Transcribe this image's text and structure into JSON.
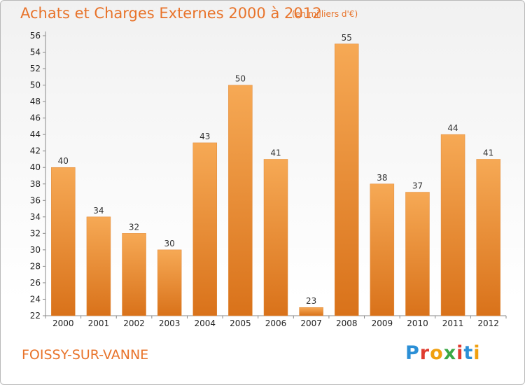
{
  "title": "Achats et Charges Externes 2000 à 2012",
  "subtitle": "(en milliers d'€)",
  "commune": "FOISSY-SUR-VANNE",
  "logo": {
    "letters": [
      "P",
      "r",
      "o",
      "x",
      "i",
      "t",
      "i"
    ],
    "colors": [
      "#2b8fd6",
      "#e03b2f",
      "#f0a010",
      "#3aa845",
      "#e03b2f",
      "#2b8fd6",
      "#f0a010"
    ]
  },
  "colors": {
    "bar_top": "#f6a955",
    "bar_bottom": "#d9721a",
    "accent": "#e8732a"
  },
  "chart_data": {
    "type": "bar",
    "categories": [
      "2000",
      "2001",
      "2002",
      "2003",
      "2004",
      "2005",
      "2006",
      "2007",
      "2008",
      "2009",
      "2010",
      "2011",
      "2012"
    ],
    "values": [
      40,
      34,
      32,
      30,
      43,
      50,
      41,
      23,
      55,
      38,
      37,
      44,
      41
    ],
    "ylim": [
      22,
      56
    ],
    "yticks": [
      22,
      24,
      26,
      28,
      30,
      32,
      34,
      36,
      38,
      40,
      42,
      44,
      46,
      48,
      50,
      52,
      54,
      56
    ],
    "grid": false,
    "legend": "none"
  }
}
